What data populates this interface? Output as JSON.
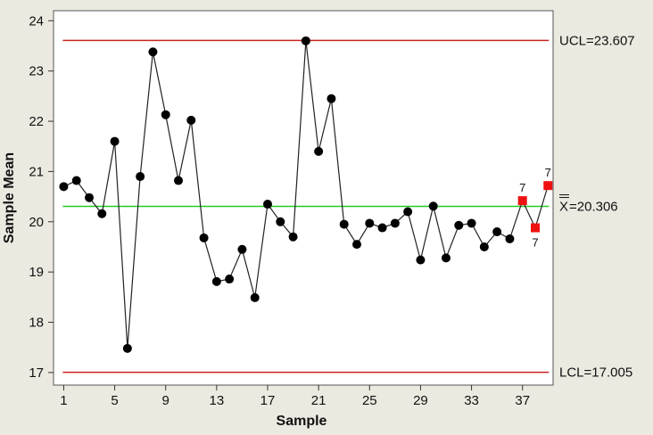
{
  "chart_data": {
    "type": "line",
    "title": "",
    "xlabel": "Sample",
    "ylabel": "Sample Mean",
    "xlim": [
      0.2,
      39.4
    ],
    "ylim": [
      16.75,
      24.2
    ],
    "x_ticks": [
      1,
      5,
      9,
      13,
      17,
      21,
      25,
      29,
      33,
      37
    ],
    "x_tick_labels": [
      "1",
      "5",
      "9",
      "13",
      "17",
      "21",
      "25",
      "29",
      "33",
      "37"
    ],
    "y_ticks": [
      17,
      18,
      19,
      20,
      21,
      22,
      23,
      24
    ],
    "y_tick_labels": [
      "17",
      "18",
      "19",
      "20",
      "21",
      "22",
      "23",
      "24"
    ],
    "grid": false,
    "series": [
      {
        "x": [
          1,
          2,
          3,
          4,
          5,
          6,
          7,
          8,
          9,
          10,
          11,
          12,
          13,
          14,
          15,
          16,
          17,
          18,
          19,
          20,
          21,
          22,
          23,
          24,
          25,
          26,
          27,
          28,
          29,
          30,
          31,
          32,
          33,
          34,
          35,
          36,
          37,
          38,
          39
        ],
        "values": [
          20.7,
          20.82,
          20.48,
          20.16,
          21.6,
          17.48,
          20.9,
          23.38,
          22.13,
          20.82,
          22.02,
          19.68,
          18.81,
          18.86,
          19.45,
          18.49,
          20.35,
          20.0,
          19.7,
          23.6,
          21.4,
          22.45,
          19.95,
          19.55,
          19.97,
          19.88,
          19.97,
          20.2,
          19.24,
          20.31,
          19.28,
          19.93,
          19.97,
          19.5,
          19.8,
          19.66,
          20.42,
          19.88,
          20.72
        ]
      }
    ],
    "flagged_points": [
      {
        "x": 37,
        "label": "7"
      },
      {
        "x": 38,
        "label": "7"
      },
      {
        "x": 39,
        "label": "7"
      }
    ],
    "control_limits": {
      "ucl": {
        "value": 23.607,
        "label": "UCL=23.607",
        "color": "#cc2222"
      },
      "center": {
        "value": 20.306,
        "label": "=20.306",
        "symbol": "X",
        "color": "#22cc22"
      },
      "lcl": {
        "value": 17.005,
        "label": "LCL=17.005",
        "color": "#cc2222"
      }
    },
    "colors": {
      "line": "#222222",
      "point": "#000000",
      "flagged": "#ee1111",
      "plot_bg": "#ffffff",
      "page_bg": "#ece9e1"
    }
  }
}
